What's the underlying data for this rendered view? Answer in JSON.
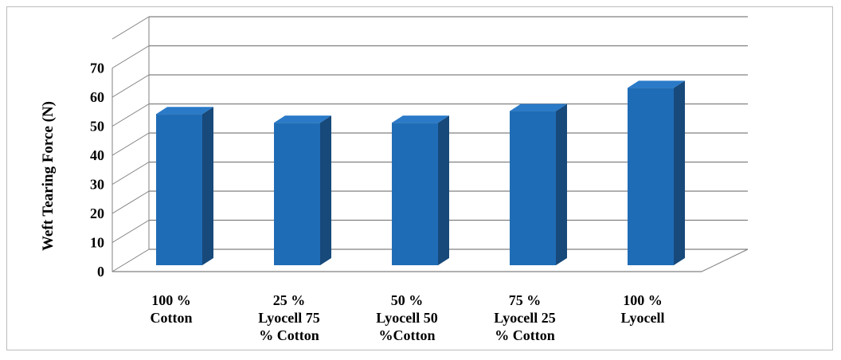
{
  "chart_data": {
    "type": "bar",
    "style": "3d-column",
    "categories": [
      [
        "100 %",
        "Cotton"
      ],
      [
        "25 %",
        "Lyocell 75",
        "% Cotton"
      ],
      [
        "50 %",
        "Lyocell 50",
        "%Cotton"
      ],
      [
        "75 %",
        "Lyocell 25",
        "% Cotton"
      ],
      [
        "100 %",
        "Lyocell"
      ]
    ],
    "series": [
      {
        "values": [
          52,
          49,
          49,
          53,
          61
        ]
      }
    ],
    "ylabel": "Weft  Tearing Force (N)",
    "xlabel": "",
    "ylim": [
      0,
      70
    ],
    "yticks": [
      0,
      10,
      20,
      30,
      40,
      50,
      60,
      70
    ],
    "grid": true,
    "legend": "none",
    "colors": {
      "bar_front": "#1f6cb6",
      "bar_side": "#17497a",
      "bar_top": "#2a7ac8",
      "gridline": "#808080",
      "frame": "#bcbcbc"
    }
  }
}
